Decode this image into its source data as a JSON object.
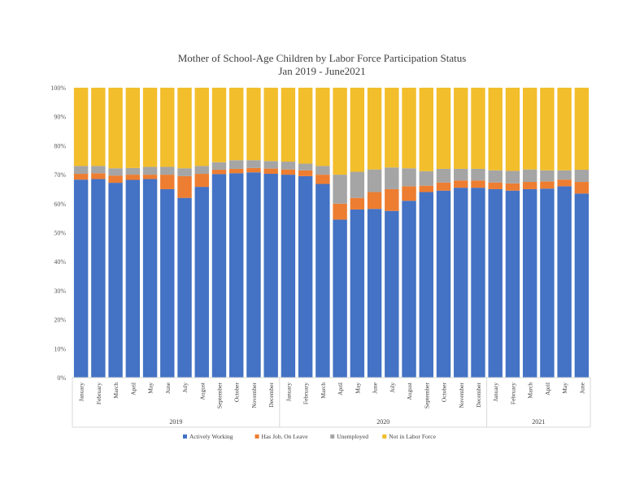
{
  "chart_data": {
    "type": "bar",
    "stacked": true,
    "percent_stacked": true,
    "title": "Mother of School-Age Children by Labor Force Participation Status",
    "subtitle": "Jan 2019 - June2021",
    "ylim": [
      0,
      100
    ],
    "y_ticks": [
      "0%",
      "10%",
      "20%",
      "30%",
      "40%",
      "50%",
      "60%",
      "70%",
      "80%",
      "90%",
      "100%"
    ],
    "grid": false,
    "legend_position": "bottom",
    "categories": [
      "January",
      "February",
      "March",
      "April",
      "May",
      "June",
      "July",
      "August",
      "September",
      "October",
      "November",
      "December",
      "January",
      "February",
      "March",
      "April",
      "May",
      "June",
      "July",
      "August",
      "September",
      "October",
      "November",
      "December",
      "January",
      "February",
      "March",
      "April",
      "May",
      "June"
    ],
    "year_groups": [
      {
        "label": "2019",
        "count": 12
      },
      {
        "label": "2020",
        "count": 12
      },
      {
        "label": "2021",
        "count": 6
      }
    ],
    "series": [
      {
        "name": "Actively Working",
        "color": "#4472C4",
        "values": [
          68.3,
          68.5,
          67.2,
          68.2,
          68.5,
          65.0,
          62.0,
          65.8,
          70.2,
          70.5,
          70.8,
          70.3,
          70.0,
          69.5,
          66.8,
          54.5,
          58.0,
          58.2,
          57.5,
          61.0,
          64.0,
          64.5,
          65.5,
          65.5,
          65.0,
          64.5,
          65.0,
          65.2,
          66.0,
          63.5
        ]
      },
      {
        "name": "Has Job, On Leave",
        "color": "#ED7D31",
        "values": [
          2.0,
          2.0,
          2.5,
          1.8,
          1.5,
          5.0,
          7.5,
          4.5,
          1.5,
          1.5,
          1.5,
          1.8,
          1.8,
          2.0,
          3.2,
          5.5,
          4.0,
          5.8,
          7.5,
          5.0,
          2.2,
          2.8,
          2.5,
          2.5,
          2.3,
          2.5,
          2.5,
          2.5,
          2.3,
          4.0
        ]
      },
      {
        "name": "Unemployed",
        "color": "#A5A5A5",
        "values": [
          2.7,
          2.5,
          2.5,
          2.3,
          2.7,
          2.7,
          2.7,
          2.7,
          2.6,
          3.0,
          2.7,
          2.6,
          2.7,
          2.3,
          3.0,
          10.0,
          9.0,
          7.8,
          7.5,
          6.2,
          5.0,
          4.7,
          4.0,
          4.0,
          4.2,
          4.3,
          4.3,
          3.8,
          3.2,
          4.2
        ]
      },
      {
        "name": "Not in Labor Force",
        "color": "#F2BE2C",
        "values": [
          27.0,
          27.0,
          27.8,
          27.7,
          27.3,
          27.3,
          27.8,
          27.0,
          25.7,
          25.0,
          25.0,
          25.3,
          25.5,
          26.2,
          27.0,
          30.0,
          29.0,
          28.2,
          27.5,
          27.8,
          28.8,
          28.0,
          28.0,
          28.0,
          28.5,
          28.7,
          28.2,
          28.5,
          28.5,
          28.3
        ]
      }
    ]
  }
}
